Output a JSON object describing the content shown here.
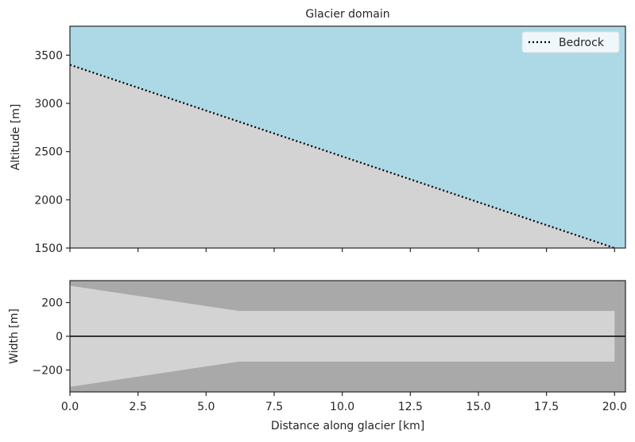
{
  "chart_data": [
    {
      "type": "line",
      "title": "Glacier domain",
      "ylabel": "Altitude [m]",
      "x": [
        0,
        20
      ],
      "series": [
        {
          "name": "Bedrock",
          "color": "#000000",
          "values": [
            3400,
            1500
          ]
        }
      ],
      "xlim": [
        0,
        20.4
      ],
      "ylim": [
        1500,
        3800
      ],
      "yticks": [
        1500,
        2000,
        2500,
        3000,
        3500
      ],
      "background": "#add8e6",
      "fill_below": "#d3d3d3",
      "legend": "upper right"
    },
    {
      "type": "area",
      "ylabel": "Width [m]",
      "xlabel": "Distance along glacier [km]",
      "x": [
        0,
        6.2,
        20
      ],
      "values": [
        300,
        150,
        150
      ],
      "color": "#d3d3d3",
      "background": "#a9a9a9",
      "xlim": [
        0,
        20.4
      ],
      "ylim": [
        -330,
        330
      ],
      "xticks": [
        {
          "value": 0,
          "label": "0.0"
        },
        {
          "value": 2.5,
          "label": "2.5"
        },
        {
          "value": 5,
          "label": "5.0"
        },
        {
          "value": 7.5,
          "label": "7.5"
        },
        {
          "value": 10,
          "label": "10.0"
        },
        {
          "value": 12.5,
          "label": "12.5"
        },
        {
          "value": 15,
          "label": "15.0"
        },
        {
          "value": 17.5,
          "label": "17.5"
        },
        {
          "value": 20,
          "label": "20.0"
        }
      ],
      "yticks": [
        {
          "value": -200,
          "label": "−200"
        },
        0,
        200
      ]
    }
  ]
}
